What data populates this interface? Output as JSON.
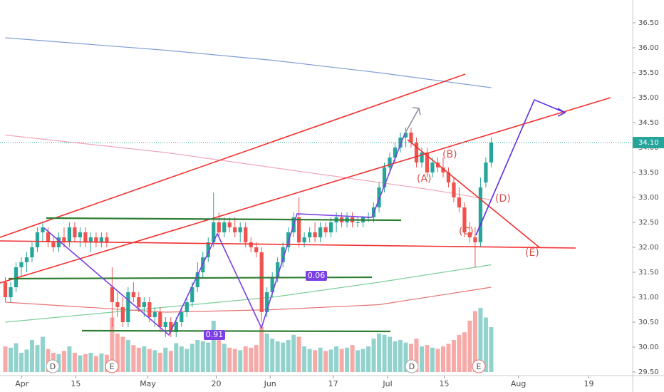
{
  "chart_data": {
    "type": "candlestick",
    "candles": [
      [
        31.3,
        31.4,
        30.9,
        31.0
      ],
      [
        31.0,
        31.3,
        30.9,
        31.2
      ],
      [
        31.2,
        31.7,
        31.1,
        31.6
      ],
      [
        31.6,
        31.8,
        31.4,
        31.7
      ],
      [
        31.7,
        31.9,
        31.5,
        31.8
      ],
      [
        31.8,
        32.1,
        31.7,
        32.0
      ],
      [
        32.0,
        32.4,
        31.9,
        32.3
      ],
      [
        32.3,
        32.5,
        32.1,
        32.4
      ],
      [
        32.3,
        32.4,
        32.0,
        32.1
      ],
      [
        32.1,
        32.2,
        31.9,
        32.0
      ],
      [
        32.0,
        32.3,
        31.9,
        32.2
      ],
      [
        32.2,
        32.4,
        32.0,
        32.1
      ],
      [
        32.1,
        32.5,
        32.0,
        32.4
      ],
      [
        32.4,
        32.5,
        32.1,
        32.2
      ],
      [
        32.2,
        32.4,
        32.0,
        32.3
      ],
      [
        32.3,
        32.4,
        32.0,
        32.1
      ],
      [
        32.1,
        32.3,
        31.9,
        32.2
      ],
      [
        32.2,
        32.3,
        32.0,
        32.1
      ],
      [
        32.1,
        32.3,
        32.0,
        32.2
      ],
      [
        32.2,
        32.3,
        32.0,
        32.1
      ],
      [
        31.2,
        31.6,
        30.4,
        30.9
      ],
      [
        30.9,
        31.1,
        30.6,
        30.8
      ],
      [
        30.8,
        31.0,
        30.4,
        30.5
      ],
      [
        30.5,
        31.2,
        30.4,
        31.1
      ],
      [
        31.1,
        31.3,
        30.9,
        31.0
      ],
      [
        31.0,
        31.1,
        30.7,
        30.8
      ],
      [
        30.8,
        31.0,
        30.6,
        30.9
      ],
      [
        30.9,
        31.0,
        30.5,
        30.6
      ],
      [
        30.6,
        30.8,
        30.4,
        30.7
      ],
      [
        30.7,
        30.8,
        30.3,
        30.4
      ],
      [
        30.4,
        30.6,
        30.2,
        30.5
      ],
      [
        30.5,
        30.6,
        30.2,
        30.3
      ],
      [
        30.3,
        30.6,
        30.2,
        30.5
      ],
      [
        30.5,
        30.8,
        30.4,
        30.7
      ],
      [
        30.7,
        31.0,
        30.6,
        30.9
      ],
      [
        30.9,
        31.3,
        30.8,
        31.2
      ],
      [
        31.2,
        31.7,
        31.1,
        31.5
      ],
      [
        31.5,
        31.9,
        31.4,
        31.8
      ],
      [
        31.8,
        32.2,
        31.7,
        32.1
      ],
      [
        32.1,
        33.1,
        32.0,
        32.5
      ],
      [
        32.5,
        32.7,
        32.2,
        32.3
      ],
      [
        32.3,
        32.6,
        32.2,
        32.5
      ],
      [
        32.5,
        32.6,
        32.3,
        32.4
      ],
      [
        32.4,
        32.6,
        32.2,
        32.3
      ],
      [
        32.3,
        32.5,
        32.1,
        32.4
      ],
      [
        32.4,
        32.5,
        32.0,
        32.1
      ],
      [
        32.1,
        32.2,
        31.9,
        32.0
      ],
      [
        32.0,
        32.1,
        31.8,
        31.9
      ],
      [
        31.9,
        32.0,
        30.5,
        30.7
      ],
      [
        30.7,
        31.2,
        30.6,
        31.1
      ],
      [
        31.1,
        31.5,
        31.0,
        31.4
      ],
      [
        31.4,
        31.8,
        31.3,
        31.7
      ],
      [
        31.7,
        32.1,
        31.6,
        32.0
      ],
      [
        32.0,
        32.4,
        31.9,
        32.3
      ],
      [
        32.3,
        32.7,
        32.2,
        32.6
      ],
      [
        32.6,
        33.0,
        32.0,
        32.1
      ],
      [
        32.1,
        32.3,
        32.0,
        32.2
      ],
      [
        32.2,
        32.4,
        32.1,
        32.3
      ],
      [
        32.3,
        32.5,
        32.1,
        32.2
      ],
      [
        32.2,
        32.5,
        32.1,
        32.4
      ],
      [
        32.4,
        32.5,
        32.2,
        32.3
      ],
      [
        32.3,
        32.6,
        32.2,
        32.5
      ],
      [
        32.5,
        32.7,
        32.3,
        32.6
      ],
      [
        32.6,
        32.7,
        32.4,
        32.5
      ],
      [
        32.5,
        32.7,
        32.4,
        32.6
      ],
      [
        32.6,
        32.7,
        32.4,
        32.5
      ],
      [
        32.5,
        32.6,
        32.4,
        32.5
      ],
      [
        32.5,
        32.6,
        32.4,
        32.6
      ],
      [
        32.6,
        32.7,
        32.5,
        32.6
      ],
      [
        32.6,
        32.9,
        32.5,
        32.8
      ],
      [
        32.8,
        33.3,
        32.7,
        33.2
      ],
      [
        33.2,
        33.7,
        33.1,
        33.6
      ],
      [
        33.6,
        33.9,
        33.5,
        33.8
      ],
      [
        33.8,
        34.1,
        33.7,
        34.0
      ],
      [
        34.0,
        34.3,
        33.9,
        34.2
      ],
      [
        34.2,
        34.4,
        34.0,
        34.3
      ],
      [
        34.3,
        34.4,
        34.0,
        34.1
      ],
      [
        34.1,
        34.2,
        33.6,
        33.7
      ],
      [
        33.7,
        34.0,
        33.6,
        33.9
      ],
      [
        33.9,
        34.0,
        33.4,
        33.5
      ],
      [
        33.5,
        33.8,
        33.4,
        33.7
      ],
      [
        33.7,
        33.8,
        33.5,
        33.6
      ],
      [
        33.6,
        33.8,
        33.4,
        33.5
      ],
      [
        33.5,
        33.6,
        33.2,
        33.3
      ],
      [
        33.3,
        33.4,
        32.9,
        33.0
      ],
      [
        33.0,
        33.2,
        32.7,
        32.8
      ],
      [
        32.8,
        32.9,
        32.2,
        32.3
      ],
      [
        32.3,
        32.5,
        32.1,
        32.2
      ],
      [
        32.2,
        32.4,
        31.6,
        32.1
      ],
      [
        32.1,
        33.4,
        32.0,
        33.2
      ],
      [
        33.3,
        33.8,
        33.2,
        33.7
      ],
      [
        33.7,
        34.2,
        33.6,
        34.1
      ]
    ],
    "volume": [
      40,
      38,
      45,
      30,
      35,
      50,
      42,
      55,
      36,
      30,
      28,
      33,
      40,
      30,
      26,
      28,
      30,
      25,
      29,
      27,
      85,
      60,
      55,
      50,
      42,
      38,
      40,
      36,
      34,
      30,
      38,
      33,
      45,
      40,
      36,
      44,
      50,
      48,
      46,
      80,
      55,
      44,
      38,
      36,
      34,
      40,
      38,
      42,
      70,
      60,
      52,
      48,
      46,
      50,
      58,
      55,
      40,
      36,
      34,
      38,
      33,
      35,
      40,
      36,
      38,
      42,
      34,
      36,
      40,
      52,
      60,
      58,
      55,
      48,
      50,
      46,
      44,
      52,
      40,
      42,
      38,
      36,
      40,
      44,
      50,
      58,
      62,
      80,
      95,
      100,
      85,
      70
    ],
    "overlays": [
      {
        "color": "#7f9fd6",
        "x": [
          0,
          30,
          50,
          70,
          91
        ],
        "values": [
          36.2,
          35.95,
          35.75,
          35.5,
          35.2
        ]
      },
      {
        "color": "#f2a7b8",
        "x": [
          0,
          30,
          60,
          80,
          91
        ],
        "values": [
          34.25,
          33.9,
          33.45,
          33.15,
          32.95
        ]
      },
      {
        "color": "#7ccf9a",
        "x": [
          0,
          30,
          50,
          70,
          91
        ],
        "values": [
          30.5,
          30.8,
          31.0,
          31.3,
          31.65
        ]
      },
      {
        "color": "#e57373",
        "x": [
          0,
          30,
          50,
          70,
          91
        ],
        "values": [
          30.9,
          30.7,
          30.75,
          30.85,
          31.2
        ]
      }
    ],
    "ylim": [
      29.5,
      36.5
    ],
    "yticks": [
      {
        "value": 29.5,
        "label": "29.50"
      },
      {
        "value": 30,
        "label": "30.00"
      },
      {
        "value": 30.5,
        "label": "30.50"
      },
      {
        "value": 31,
        "label": "31.00"
      },
      {
        "value": 31.5,
        "label": "31.50"
      },
      {
        "value": 32,
        "label": "32.00"
      },
      {
        "value": 32.5,
        "label": "32.50"
      },
      {
        "value": 33,
        "label": "33.00"
      },
      {
        "value": 33.5,
        "label": "33.50"
      },
      {
        "value": 34,
        "label": "34.00"
      },
      {
        "value": 34.5,
        "label": "34.50"
      },
      {
        "value": 35,
        "label": "35.00"
      },
      {
        "value": 35.5,
        "label": "35.50"
      },
      {
        "value": 36,
        "label": "36.00"
      },
      {
        "value": 36.5,
        "label": "36.50"
      }
    ],
    "xlim": [
      -1,
      117.5
    ],
    "xticks": [
      {
        "value": 3.1,
        "label": "Apr"
      },
      {
        "value": 13.2,
        "label": "15"
      },
      {
        "value": 26.7,
        "label": "May"
      },
      {
        "value": 39.5,
        "label": "20"
      },
      {
        "value": 49.6,
        "label": "Jun"
      },
      {
        "value": 61.4,
        "label": "17"
      },
      {
        "value": 71.6,
        "label": "Jul"
      },
      {
        "value": 82.2,
        "label": "15"
      },
      {
        "value": 96.1,
        "label": "Aug"
      },
      {
        "value": 109.3,
        "label": "19"
      }
    ],
    "last_price": {
      "value": 34.1,
      "label": "34.10"
    },
    "annotations": [
      "(A)",
      "(B)",
      "(C)",
      "(D)",
      "(E)",
      "0.91",
      "0.06",
      "D",
      "E",
      "D",
      "E"
    ],
    "colors": {
      "up": "#26a69a",
      "down": "#ef5350"
    }
  }
}
